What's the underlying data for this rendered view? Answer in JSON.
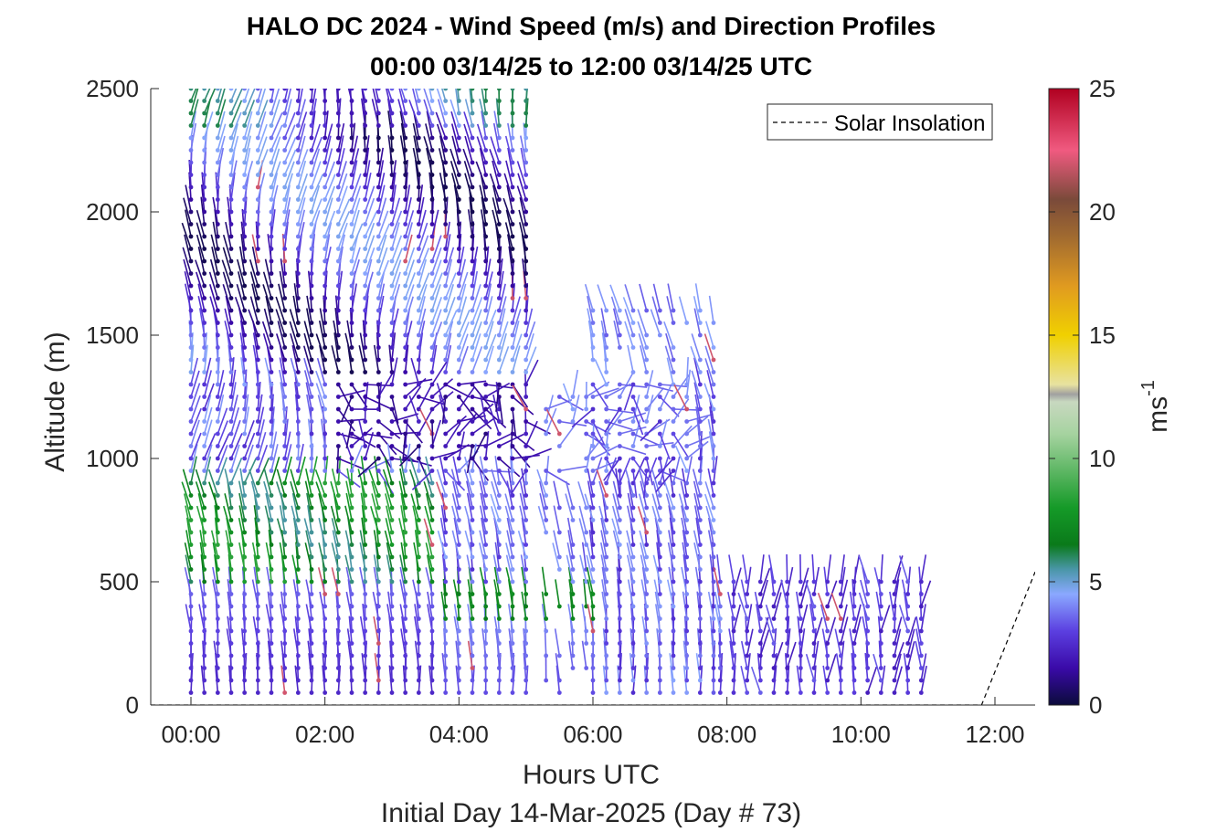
{
  "chart_data": {
    "type": "wind-barb-profile",
    "title": "HALO DC 2024 - Wind Speed (m/s) and Direction Profiles",
    "subtitle": "00:00 03/14/25 to 12:00 03/14/25  UTC",
    "xlabel": "Hours UTC",
    "xlabel2": "Initial Day 14-Mar-2025 (Day # 73)",
    "ylabel": "Altitude (m)",
    "x_ticks": [
      "00:00",
      "02:00",
      "04:00",
      "06:00",
      "08:00",
      "10:00",
      "12:00"
    ],
    "x_tick_hours": [
      0,
      2,
      4,
      6,
      8,
      10,
      12
    ],
    "xlim_hours": [
      -0.6,
      12.6
    ],
    "y_ticks": [
      0,
      500,
      1000,
      1500,
      2000,
      2500
    ],
    "ylim": [
      0,
      2500
    ],
    "colorbar": {
      "label": "ms",
      "label_exp": "-1",
      "ticks": [
        0,
        5,
        10,
        15,
        20,
        25
      ],
      "range": [
        0,
        25
      ],
      "stops": [
        {
          "v": 0,
          "c": "#0b0b3b"
        },
        {
          "v": 1.5,
          "c": "#3a0aa8"
        },
        {
          "v": 3,
          "c": "#5b3fe0"
        },
        {
          "v": 4.5,
          "c": "#8aa8ff"
        },
        {
          "v": 5.5,
          "c": "#4a96a8"
        },
        {
          "v": 6.5,
          "c": "#0a7a1a"
        },
        {
          "v": 8,
          "c": "#159a28"
        },
        {
          "v": 11,
          "c": "#a6d3a0"
        },
        {
          "v": 12.3,
          "c": "#c8d8c0"
        },
        {
          "v": 12.6,
          "c": "#a0a0a0"
        },
        {
          "v": 13,
          "c": "#e8e2a0"
        },
        {
          "v": 15,
          "c": "#f0d000"
        },
        {
          "v": 17,
          "c": "#e09a20"
        },
        {
          "v": 19,
          "c": "#a06a30"
        },
        {
          "v": 20.5,
          "c": "#7a4a3a"
        },
        {
          "v": 22.5,
          "c": "#f05a80"
        },
        {
          "v": 25,
          "c": "#b00020"
        }
      ]
    },
    "legend": {
      "label": "Solar Insolation",
      "placement": "top-right",
      "style": "dashed"
    },
    "solar_insolation": [
      {
        "hour": -0.6,
        "alt": 0
      },
      {
        "hour": 11.8,
        "alt": 0
      },
      {
        "hour": 12.6,
        "alt": 540
      }
    ],
    "profiles": {
      "time_step_hours": 0.2,
      "alt_step_m": 50,
      "segments": [
        {
          "t_start": 0.0,
          "t_end": 5.1,
          "alt_min": 50,
          "alt_max": 2500
        },
        {
          "t_start": 5.3,
          "t_end": 6.0,
          "alt_min": 50,
          "alt_max": 1250
        },
        {
          "t_start": 6.0,
          "t_end": 7.9,
          "alt_min": 50,
          "alt_max": 1600
        },
        {
          "t_start": 7.9,
          "t_end": 11.0,
          "alt_min": 50,
          "alt_max": 500
        }
      ]
    }
  }
}
